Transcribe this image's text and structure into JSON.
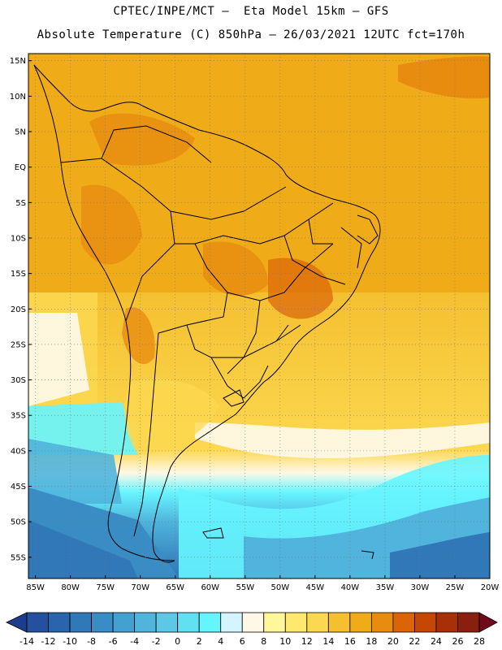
{
  "header": {
    "line1": "CPTEC/INPE/MCT –  Eta Model 15km – GFS",
    "line2": "Absolute Temperature (C) 850hPa – 26/03/2021 12UTC fct=170h"
  },
  "map": {
    "lat_labels": [
      "15N",
      "10N",
      "5N",
      "EQ",
      "5S",
      "10S",
      "15S",
      "20S",
      "25S",
      "30S",
      "35S",
      "40S",
      "45S",
      "50S",
      "55S"
    ],
    "lon_labels": [
      "85W",
      "80W",
      "75W",
      "70W",
      "65W",
      "60W",
      "55W",
      "50W",
      "45W",
      "40W",
      "35W",
      "30W",
      "25W",
      "20W"
    ],
    "lat_values": [
      15,
      10,
      5,
      0,
      -5,
      -10,
      -15,
      -20,
      -25,
      -30,
      -35,
      -40,
      -45,
      -50,
      -55
    ],
    "lon_values": [
      -85,
      -80,
      -75,
      -70,
      -65,
      -60,
      -55,
      -50,
      -45,
      -40,
      -35,
      -30,
      -25,
      -20
    ],
    "extent": {
      "lon_min": -86,
      "lon_max": -20,
      "lat_min": -58,
      "lat_max": 16
    },
    "gridlines": true
  },
  "colorbar": {
    "ticks": [
      "-14",
      "-12",
      "-10",
      "-8",
      "-6",
      "-4",
      "-2",
      "0",
      "2",
      "4",
      "6",
      "8",
      "10",
      "12",
      "14",
      "16",
      "18",
      "20",
      "22",
      "24",
      "26",
      "28"
    ],
    "colors": [
      "#1e3c8c",
      "#24509c",
      "#2a64ac",
      "#3078b8",
      "#3a8cc4",
      "#44a0d0",
      "#50b4dc",
      "#5cc8e6",
      "#60e0f0",
      "#66f5ff",
      "#d4f4ff",
      "#fff8e6",
      "#fff79a",
      "#ffe86e",
      "#fcd850",
      "#f4c030",
      "#f0ac18",
      "#e88c10",
      "#dc6408",
      "#c44804",
      "#a83008",
      "#882010",
      "#700a1a"
    ]
  }
}
